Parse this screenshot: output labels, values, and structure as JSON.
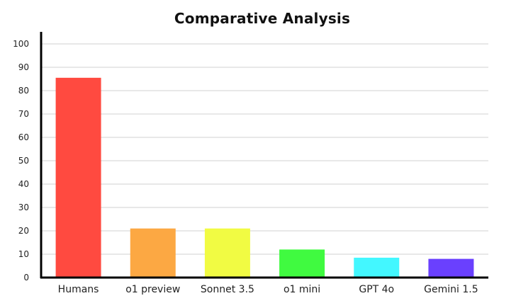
{
  "chart_data": {
    "type": "bar",
    "title": "Comparative Analysis",
    "xlabel": "",
    "ylabel": "",
    "categories": [
      "Humans",
      "o1 preview",
      "Sonnet 3.5",
      "o1 mini",
      "GPT 4o",
      "Gemini 1.5"
    ],
    "values": [
      85.5,
      21,
      21,
      12,
      8.5,
      8
    ],
    "colors": [
      "#ff4a40",
      "#fca843",
      "#f1fb43",
      "#40fa40",
      "#43f7ff",
      "#6a40fe"
    ],
    "ylim": [
      0,
      100
    ],
    "yticks": [
      0,
      10,
      20,
      30,
      40,
      50,
      60,
      70,
      80,
      90,
      100
    ],
    "grid": true,
    "legend": "none"
  }
}
